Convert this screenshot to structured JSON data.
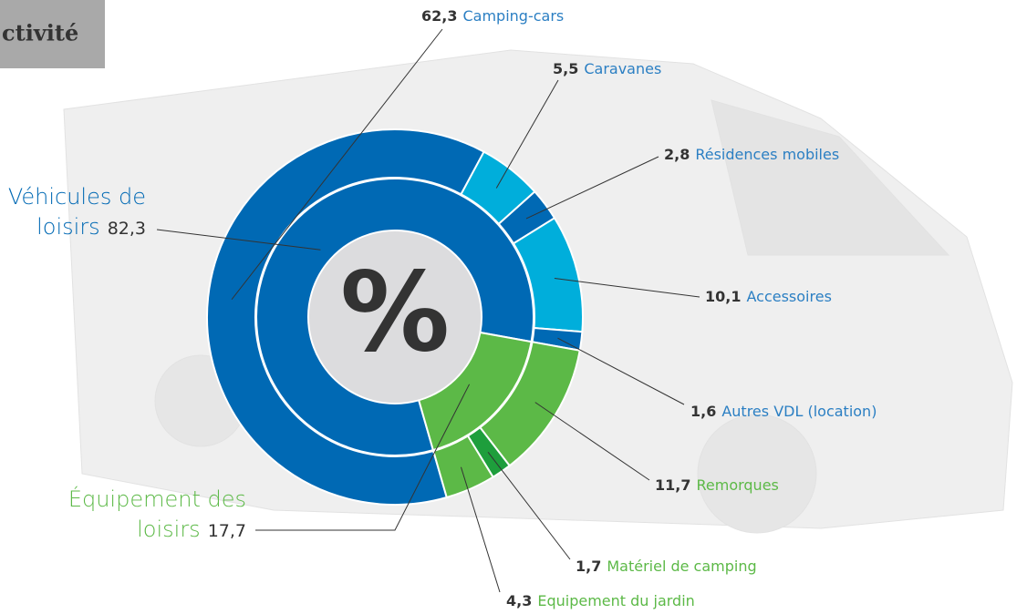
{
  "chart_data": {
    "type": "sunburst",
    "title": "ctivité",
    "center_label": "%",
    "inner": {
      "categories": [
        "Véhicules de loisirs",
        "Équipement des loisirs"
      ],
      "values": [
        82.3,
        17.7
      ],
      "value_labels": [
        "82,3",
        "17,7"
      ],
      "colors": [
        "#0069b4",
        "#5cb947"
      ]
    },
    "outer": {
      "categories": [
        "Camping-cars",
        "Caravanes",
        "Résidences mobiles",
        "Accessoires",
        "Autres VDL (location)",
        "Remorques",
        "Matériel de camping",
        "Equipement du jardin"
      ],
      "values": [
        62.3,
        5.5,
        2.8,
        10.1,
        1.6,
        11.7,
        1.7,
        4.3
      ],
      "value_labels": [
        "62,3",
        "5,5",
        "2,8",
        "10,1",
        "1,6",
        "11,7",
        "1,7",
        "4,3"
      ],
      "colors": [
        "#0069b4",
        "#00aedb",
        "#0069b4",
        "#00aedb",
        "#0069b4",
        "#5cb947",
        "#1e9e3c",
        "#5cb947"
      ],
      "label_colors": [
        "#2b7fc3",
        "#2b7fc3",
        "#2b7fc3",
        "#2b7fc3",
        "#2b7fc3",
        "#5cb947",
        "#5cb947",
        "#5cb947"
      ]
    }
  }
}
